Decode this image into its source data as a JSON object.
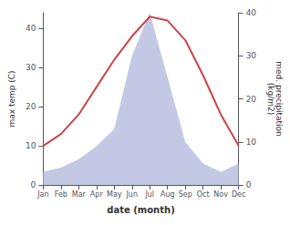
{
  "chart_data": {
    "type": "line",
    "categories": [
      "Jan",
      "Feb",
      "Mar",
      "Apr",
      "May",
      "Jun",
      "Jul",
      "Aug",
      "Sep",
      "Oct",
      "Nov",
      "Dec"
    ],
    "series": [
      {
        "type": "area",
        "axis": "y2",
        "color": "#b8c0e0",
        "values": [
          3,
          4,
          6,
          9,
          13,
          30,
          40,
          25,
          10,
          5,
          3,
          5
        ]
      },
      {
        "type": "line",
        "color": "#cc4444",
        "values": [
          10,
          13,
          18,
          25,
          32,
          38,
          43,
          42,
          37,
          28,
          18,
          10
        ]
      }
    ],
    "xlabel": "date (month)",
    "ylabel": "max temp (C)",
    "y2label": "med. precipitation\n(kg/m2)",
    "ylim": [
      0,
      44
    ],
    "yticks": [
      0,
      10,
      20,
      30,
      40
    ],
    "y2lim": [
      0,
      40
    ],
    "y2ticks": [
      0,
      10,
      20,
      30,
      40
    ],
    "grid": false
  }
}
